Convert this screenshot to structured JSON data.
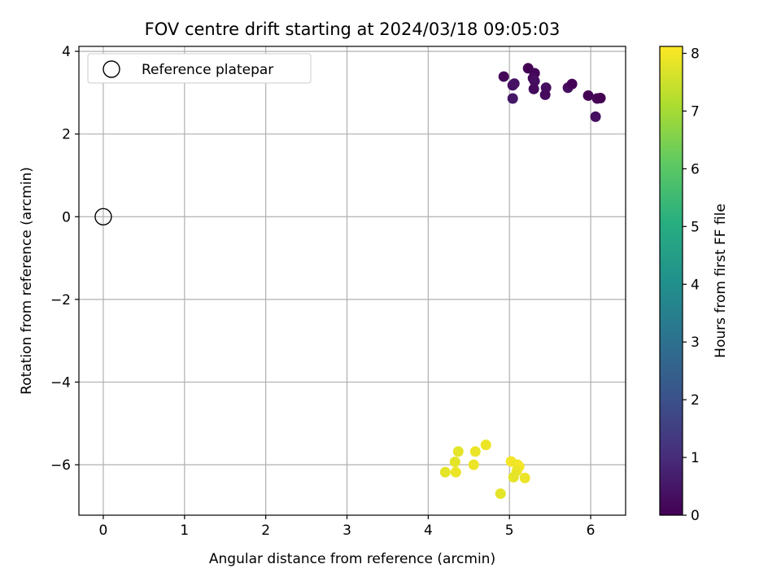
{
  "chart_data": {
    "type": "scatter",
    "title": "FOV centre drift starting at 2024/03/18 09:05:03",
    "xlabel": "Angular distance from reference (arcmin)",
    "ylabel": "Rotation from reference (arcmin)",
    "xlim": [
      -0.3,
      6.43
    ],
    "ylim": [
      -7.22,
      4.12
    ],
    "xticks": [
      0,
      1,
      2,
      3,
      4,
      5,
      6
    ],
    "yticks": [
      -6,
      -4,
      -2,
      0,
      2,
      4
    ],
    "xtick_labels": [
      "0",
      "1",
      "2",
      "3",
      "4",
      "5",
      "6"
    ],
    "ytick_labels": [
      "−6",
      "−4",
      "−2",
      "0",
      "2",
      "4"
    ],
    "grid": true,
    "legend": {
      "placement": "top-left",
      "entries": [
        {
          "label": "Reference platepar",
          "marker": "open-circle"
        }
      ]
    },
    "reference_point": {
      "x": 0,
      "y": 0
    },
    "colorbar": {
      "label": "Hours from first FF file",
      "range": [
        0,
        8.12
      ],
      "ticks": [
        0,
        1,
        2,
        3,
        4,
        5,
        6,
        7,
        8
      ],
      "tick_labels": [
        "0",
        "1",
        "2",
        "3",
        "4",
        "5",
        "6",
        "7",
        "8"
      ],
      "colormap": "viridis"
    },
    "points": [
      {
        "x": 4.93,
        "y": 3.39,
        "hours": 0.1
      },
      {
        "x": 5.04,
        "y": 3.18,
        "hours": 0.3
      },
      {
        "x": 5.06,
        "y": 3.22,
        "hours": 0.4
      },
      {
        "x": 5.04,
        "y": 2.86,
        "hours": 0.5
      },
      {
        "x": 5.23,
        "y": 3.59,
        "hours": 0.0
      },
      {
        "x": 5.31,
        "y": 3.47,
        "hours": 0.1
      },
      {
        "x": 5.29,
        "y": 3.35,
        "hours": 0.2
      },
      {
        "x": 5.31,
        "y": 3.28,
        "hours": 0.3
      },
      {
        "x": 5.3,
        "y": 3.09,
        "hours": 0.2
      },
      {
        "x": 5.45,
        "y": 3.12,
        "hours": 0.3
      },
      {
        "x": 5.44,
        "y": 2.95,
        "hours": 0.2
      },
      {
        "x": 5.72,
        "y": 3.12,
        "hours": 0.3
      },
      {
        "x": 5.77,
        "y": 3.21,
        "hours": 0.1
      },
      {
        "x": 5.97,
        "y": 2.93,
        "hours": 0.0
      },
      {
        "x": 6.08,
        "y": 2.86,
        "hours": 0.1
      },
      {
        "x": 6.12,
        "y": 2.87,
        "hours": 0.0
      },
      {
        "x": 6.06,
        "y": 2.42,
        "hours": 0.3
      },
      {
        "x": 4.71,
        "y": -5.52,
        "hours": 7.9
      },
      {
        "x": 4.37,
        "y": -5.68,
        "hours": 7.8
      },
      {
        "x": 4.58,
        "y": -5.68,
        "hours": 7.9
      },
      {
        "x": 4.33,
        "y": -5.93,
        "hours": 7.8
      },
      {
        "x": 4.56,
        "y": -6.0,
        "hours": 7.9
      },
      {
        "x": 4.21,
        "y": -6.18,
        "hours": 7.8
      },
      {
        "x": 4.34,
        "y": -6.18,
        "hours": 7.9
      },
      {
        "x": 5.02,
        "y": -5.92,
        "hours": 8.0
      },
      {
        "x": 5.1,
        "y": -6.0,
        "hours": 7.9
      },
      {
        "x": 5.12,
        "y": -6.04,
        "hours": 8.0
      },
      {
        "x": 5.09,
        "y": -6.15,
        "hours": 7.9
      },
      {
        "x": 5.05,
        "y": -6.3,
        "hours": 7.8
      },
      {
        "x": 5.19,
        "y": -6.32,
        "hours": 7.9
      },
      {
        "x": 4.89,
        "y": -6.7,
        "hours": 7.8
      }
    ]
  }
}
